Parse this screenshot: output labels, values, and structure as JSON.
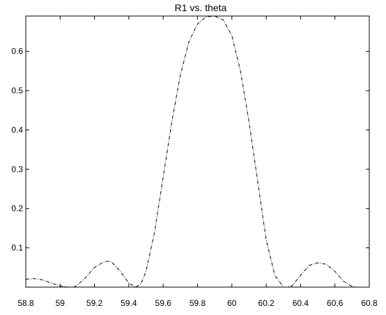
{
  "chart_data": {
    "type": "line",
    "title": "R1 vs. theta",
    "xlabel": "",
    "ylabel": "",
    "xlim": [
      58.8,
      60.8
    ],
    "ylim": [
      0,
      0.69
    ],
    "x_ticks": [
      58.8,
      59,
      59.2,
      59.4,
      59.6,
      59.8,
      60,
      60.2,
      60.4,
      60.6,
      60.8
    ],
    "x_tick_labels": [
      "58.8",
      "59",
      "59.2",
      "59.4",
      "59.6",
      "59.8",
      "60",
      "60.2",
      "60.4",
      "60.6",
      "60.8"
    ],
    "y_ticks": [
      0.1,
      0.2,
      0.3,
      0.4,
      0.5,
      0.6
    ],
    "y_tick_labels": [
      "0.1",
      "0.2",
      "0.3",
      "0.4",
      "0.5",
      "0.6"
    ],
    "grid": false,
    "line_style": "dash-dot",
    "series": [
      {
        "x": [
          58.8,
          58.85,
          58.9,
          58.95,
          59.0,
          59.05,
          59.08,
          59.1,
          59.15,
          59.2,
          59.25,
          59.28,
          59.3,
          59.35,
          59.4,
          59.44,
          59.47,
          59.5,
          59.55,
          59.6,
          59.65,
          59.7,
          59.75,
          59.8,
          59.85,
          59.9,
          59.95,
          60.0,
          60.05,
          60.1,
          60.15,
          60.2,
          60.25,
          60.3,
          60.32,
          60.35,
          60.4,
          60.45,
          60.5,
          60.55,
          60.6,
          60.65,
          60.7,
          60.72
        ],
        "y": [
          0.02,
          0.022,
          0.018,
          0.01,
          0.003,
          0.0,
          0.0,
          0.005,
          0.025,
          0.05,
          0.063,
          0.066,
          0.064,
          0.04,
          0.01,
          0.0,
          0.008,
          0.04,
          0.14,
          0.28,
          0.42,
          0.54,
          0.625,
          0.67,
          0.688,
          0.69,
          0.68,
          0.64,
          0.55,
          0.42,
          0.27,
          0.12,
          0.03,
          0.0,
          0.0,
          0.003,
          0.03,
          0.055,
          0.062,
          0.058,
          0.04,
          0.015,
          0.002,
          0.0
        ]
      }
    ]
  }
}
